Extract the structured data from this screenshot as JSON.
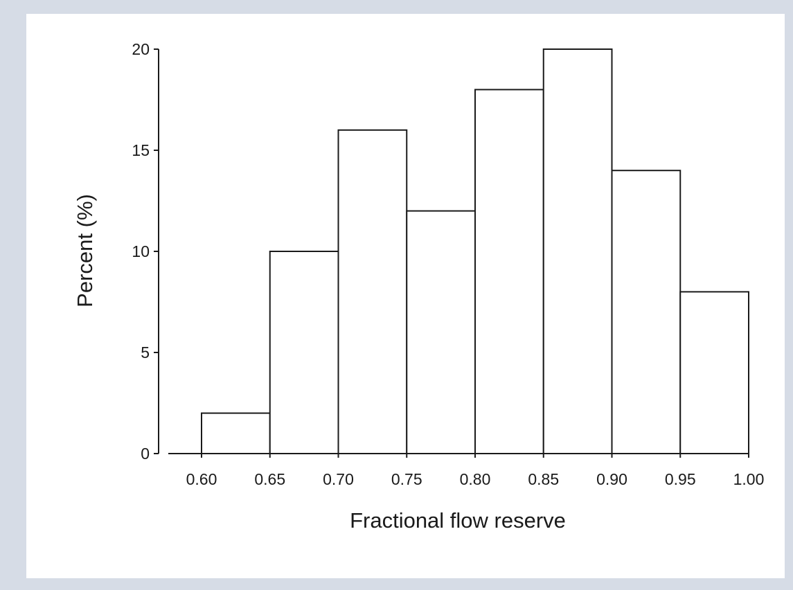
{
  "chart_data": {
    "type": "bar",
    "xlabel": "Fractional flow reserve",
    "ylabel": "Percent (%)",
    "bin_edges": [
      0.6,
      0.65,
      0.7,
      0.75,
      0.8,
      0.85,
      0.9,
      0.95,
      1.0
    ],
    "x_tick_labels": [
      "0.60",
      "0.65",
      "0.70",
      "0.75",
      "0.80",
      "0.85",
      "0.90",
      "0.95",
      "1.00"
    ],
    "values": [
      2,
      10,
      16,
      12,
      18,
      20,
      14,
      8
    ],
    "y_ticks": [
      0,
      5,
      10,
      15,
      20
    ],
    "y_tick_labels": [
      "0",
      "5",
      "10",
      "15",
      "20"
    ],
    "xlim": [
      0.6,
      1.0
    ],
    "ylim": [
      0,
      20
    ],
    "grid": false,
    "legend": "none",
    "bar_fill": "#ffffff",
    "bar_stroke": "#1a1a1a"
  }
}
